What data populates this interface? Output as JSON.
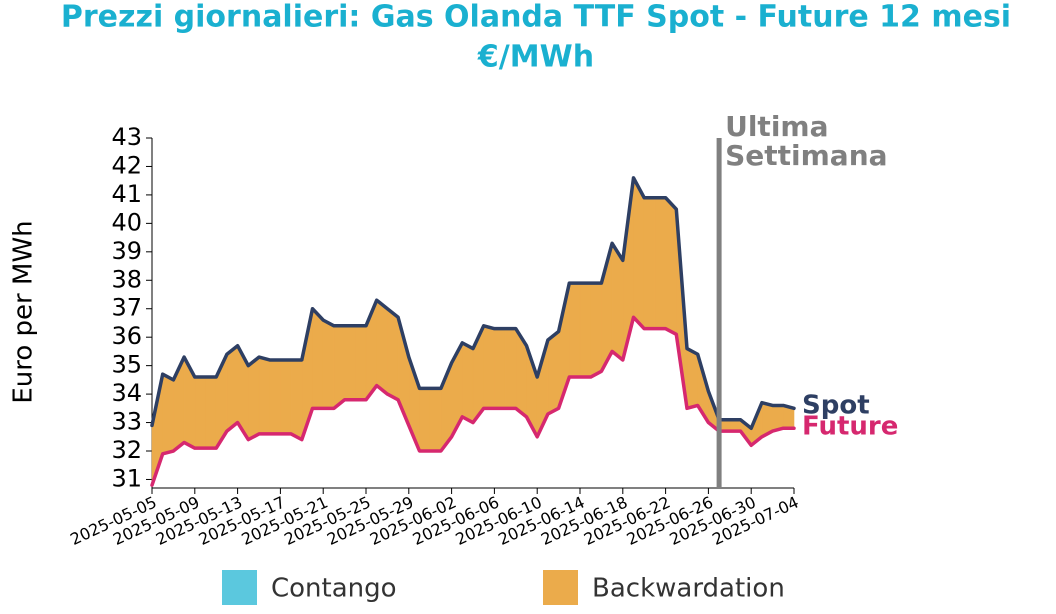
{
  "chart_data": {
    "type": "spread",
    "title": "Prezzi giornalieri: Gas Olanda TTF Spot - Future 12 mesi",
    "subtitle": "€/MWh",
    "y_label": "Euro per MWh",
    "x": [
      "2025-05-05",
      "2025-05-06",
      "2025-05-07",
      "2025-05-08",
      "2025-05-09",
      "2025-05-10",
      "2025-05-11",
      "2025-05-12",
      "2025-05-13",
      "2025-05-14",
      "2025-05-15",
      "2025-05-16",
      "2025-05-17",
      "2025-05-18",
      "2025-05-19",
      "2025-05-20",
      "2025-05-21",
      "2025-05-22",
      "2025-05-23",
      "2025-05-24",
      "2025-05-25",
      "2025-05-26",
      "2025-05-27",
      "2025-05-28",
      "2025-05-29",
      "2025-05-30",
      "2025-05-31",
      "2025-06-01",
      "2025-06-02",
      "2025-06-03",
      "2025-06-04",
      "2025-06-05",
      "2025-06-06",
      "2025-06-07",
      "2025-06-08",
      "2025-06-09",
      "2025-06-10",
      "2025-06-11",
      "2025-06-12",
      "2025-06-13",
      "2025-06-14",
      "2025-06-15",
      "2025-06-16",
      "2025-06-17",
      "2025-06-18",
      "2025-06-19",
      "2025-06-20",
      "2025-06-21",
      "2025-06-22",
      "2025-06-23",
      "2025-06-24",
      "2025-06-25",
      "2025-06-26",
      "2025-06-27",
      "2025-06-28",
      "2025-06-29",
      "2025-06-30",
      "2025-07-01",
      "2025-07-02",
      "2025-07-03",
      "2025-07-04"
    ],
    "series": [
      {
        "name": "Spot",
        "color": "#2e3f63",
        "values": [
          32.9,
          34.7,
          34.5,
          35.3,
          34.6,
          34.6,
          34.6,
          35.4,
          35.7,
          35.0,
          35.3,
          35.2,
          35.2,
          35.2,
          35.2,
          37.0,
          36.6,
          36.4,
          36.4,
          36.4,
          36.4,
          37.3,
          37.0,
          36.7,
          35.3,
          34.2,
          34.2,
          34.2,
          35.1,
          35.8,
          35.6,
          36.4,
          36.3,
          36.3,
          36.3,
          35.7,
          34.6,
          35.9,
          36.2,
          37.9,
          37.9,
          37.9,
          37.9,
          39.3,
          38.7,
          41.6,
          40.9,
          40.9,
          40.9,
          40.5,
          35.6,
          35.4,
          34.1,
          33.1,
          33.1,
          33.1,
          32.8,
          33.7,
          33.6,
          33.6,
          33.5
        ]
      },
      {
        "name": "Future",
        "color": "#d6286f",
        "values": [
          30.8,
          31.9,
          32.0,
          32.3,
          32.1,
          32.1,
          32.1,
          32.7,
          33.0,
          32.4,
          32.6,
          32.6,
          32.6,
          32.6,
          32.4,
          33.5,
          33.5,
          33.5,
          33.8,
          33.8,
          33.8,
          34.3,
          34.0,
          33.8,
          32.9,
          32.0,
          32.0,
          32.0,
          32.5,
          33.2,
          33.0,
          33.5,
          33.5,
          33.5,
          33.5,
          33.2,
          32.5,
          33.3,
          33.5,
          34.6,
          34.6,
          34.6,
          34.8,
          35.5,
          35.2,
          36.7,
          36.3,
          36.3,
          36.3,
          36.1,
          33.5,
          33.6,
          33.0,
          32.7,
          32.7,
          32.7,
          32.2,
          32.5,
          32.7,
          32.8,
          32.8
        ]
      }
    ],
    "fill_legend": [
      {
        "name": "Contango",
        "color": "#5bc8de"
      },
      {
        "name": "Backwardation",
        "color": "#ebab4b"
      }
    ],
    "xlim": [
      "2025-05-05",
      "2025-07-04"
    ],
    "xticks": [
      "2025-05-05",
      "2025-05-09",
      "2025-05-13",
      "2025-05-17",
      "2025-05-21",
      "2025-05-25",
      "2025-05-29",
      "2025-06-02",
      "2025-06-06",
      "2025-06-10",
      "2025-06-14",
      "2025-06-18",
      "2025-06-22",
      "2025-06-26",
      "2025-06-30",
      "2025-07-04"
    ],
    "ylim": [
      30.7,
      43
    ],
    "yticks": [
      31,
      32,
      33,
      34,
      35,
      36,
      37,
      38,
      39,
      40,
      41,
      42,
      43
    ],
    "annotation": {
      "x": "2025-06-27",
      "lines": [
        "Ultima",
        "Settimana"
      ],
      "color": "#808080"
    }
  }
}
